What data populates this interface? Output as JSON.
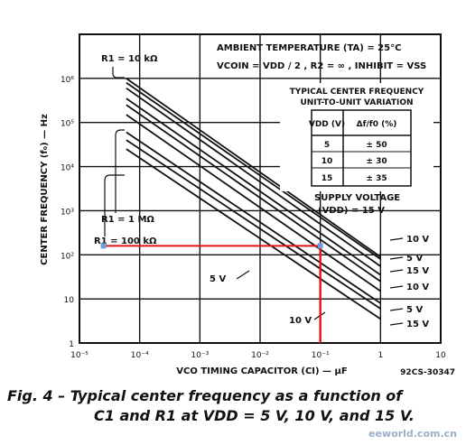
{
  "chart_data": {
    "type": "line",
    "x_axis": {
      "label": "VCO TIMING CAPACITOR (CI) — µF",
      "scale": "log",
      "range": [
        1e-05,
        10
      ],
      "ticks": [
        {
          "v": 1e-05,
          "t": "10⁻⁵"
        },
        {
          "v": 0.0001,
          "t": "10⁻⁴"
        },
        {
          "v": 0.001,
          "t": "10⁻³"
        },
        {
          "v": 0.01,
          "t": "10⁻²"
        },
        {
          "v": 0.1,
          "t": "10⁻¹"
        },
        {
          "v": 1,
          "t": "1"
        },
        {
          "v": 10,
          "t": "10"
        }
      ]
    },
    "y_axis": {
      "label": "CENTER FREQUENCY (f₀) — Hz",
      "scale": "log",
      "range": [
        1,
        10000000
      ],
      "ticks": [
        {
          "v": 1,
          "t": "1"
        },
        {
          "v": 10,
          "t": "10"
        },
        {
          "v": 100,
          "t": "10²"
        },
        {
          "v": 1000,
          "t": "10³"
        },
        {
          "v": 10000,
          "t": "10⁴"
        },
        {
          "v": 100000,
          "t": "10⁵"
        },
        {
          "v": 1000000,
          "t": "10⁶"
        }
      ]
    },
    "series": [
      {
        "group": "R1 = 10 kΩ",
        "supply": "10 V",
        "points": [
          [
            6e-05,
            800000
          ],
          [
            1,
            80
          ]
        ]
      },
      {
        "group": "R1 = 10 kΩ",
        "supply": "5 V",
        "points": [
          [
            6e-05,
            600000
          ],
          [
            1,
            55
          ]
        ]
      },
      {
        "group": "R1 = 10 kΩ",
        "supply": "15 V",
        "points": [
          [
            6e-05,
            1000000
          ],
          [
            1,
            90
          ]
        ]
      },
      {
        "group": "R1 = 1 MΩ",
        "supply": "10 V",
        "points": [
          [
            6e-05,
            250000
          ],
          [
            1,
            25
          ]
        ]
      },
      {
        "group": "R1 = 1 MΩ",
        "supply": "5 V",
        "points": [
          [
            6e-05,
            150000
          ],
          [
            1,
            15
          ]
        ]
      },
      {
        "group": "R1 = 1 MΩ",
        "supply": "15 V",
        "points": [
          [
            6e-05,
            350000
          ],
          [
            1,
            35
          ]
        ]
      },
      {
        "group": "R1 = 100 kΩ",
        "supply": "10 V",
        "points": [
          [
            6e-05,
            40000
          ],
          [
            1,
            6
          ]
        ]
      },
      {
        "group": "R1 = 100 kΩ",
        "supply": "5 V",
        "points": [
          [
            6e-05,
            25000
          ],
          [
            1,
            3.5
          ]
        ]
      },
      {
        "group": "R1 = 100 kΩ",
        "supply": "15 V",
        "points": [
          [
            6e-05,
            60000
          ],
          [
            1,
            8
          ]
        ]
      }
    ],
    "highlight": {
      "x": 0.1,
      "y": 160
    },
    "labels": {
      "r1_10k": "R1 = 10 kΩ",
      "r1_1m": "R1 = 1 MΩ",
      "r1_100k": "R1 = 100 kΩ",
      "v5": "5 V",
      "v10": "10 V",
      "supply": "SUPPLY VOLTAGE",
      "supply2": "(VDD) = 15 V",
      "right_labels": [
        "10 V",
        "5 V",
        "15 V",
        "10 V",
        "5 V",
        "15 V"
      ]
    },
    "conditions": {
      "line1": "AMBIENT TEMPERATURE (TA) = 25°C",
      "line2": "VCOIN = VDD / 2 , R2 = ∞ , INHIBIT = VSS"
    },
    "table": {
      "title": "TYPICAL CENTER FREQUENCY",
      "subtitle": "UNIT-TO-UNIT VARIATION",
      "headers": [
        "VDD (V)",
        "Δf/f0 (%)"
      ],
      "rows": [
        [
          "5",
          "± 50"
        ],
        [
          "10",
          "± 30"
        ],
        [
          "15",
          "± 35"
        ]
      ]
    },
    "grid": true,
    "colors": {
      "highlight": "#e0131a",
      "marker": "#6f9fd8",
      "ink": "#111111"
    }
  },
  "figure_number": "92CS-30347",
  "caption": {
    "line1": "Fig. 4  – Typical center frequency as a function of",
    "line2": "C1 and R1 at VDD = 5 V, 10 V, and 15 V."
  },
  "watermark": "eeworld.com.cn"
}
